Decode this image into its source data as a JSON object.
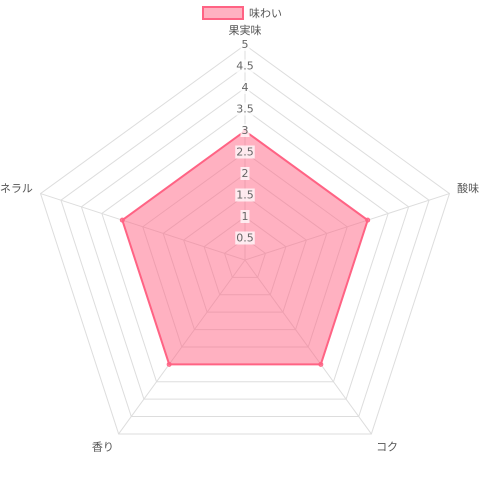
{
  "chart_data": {
    "type": "radar",
    "categories": [
      "果実味",
      "酸味",
      "コク",
      "香り",
      "ミネラル"
    ],
    "series": [
      {
        "name": "味わい",
        "color": "#ff6384",
        "values": [
          3,
          3,
          3,
          3,
          3
        ]
      }
    ],
    "ylim": [
      0,
      5
    ],
    "yticks": [
      0.5,
      1,
      1.5,
      2,
      2.5,
      3,
      3.5,
      4,
      4.5,
      5
    ],
    "grid": true
  }
}
